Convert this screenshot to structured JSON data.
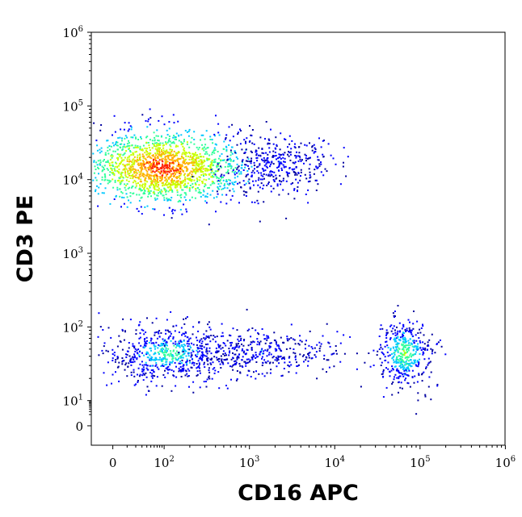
{
  "chart_data": {
    "type": "scatter",
    "subtype": "flow-cytometry-density-plot",
    "title": "",
    "xlabel": "CD16 APC",
    "ylabel": "CD3 PE",
    "x_scale": "biexponential",
    "y_scale": "biexponential",
    "xlim": [
      -50,
      1000000
    ],
    "ylim": [
      -20,
      1000000
    ],
    "x_ticks": [
      {
        "value": 0,
        "base": "0",
        "exp": ""
      },
      {
        "value": 100,
        "base": "10",
        "exp": "2"
      },
      {
        "value": 1000,
        "base": "10",
        "exp": "3"
      },
      {
        "value": 10000,
        "base": "10",
        "exp": "4"
      },
      {
        "value": 100000,
        "base": "10",
        "exp": "5"
      },
      {
        "value": 1000000,
        "base": "10",
        "exp": "6"
      }
    ],
    "y_ticks": [
      {
        "value": 0,
        "base": "0",
        "exp": ""
      },
      {
        "value": 10,
        "base": "10",
        "exp": "1"
      },
      {
        "value": 100,
        "base": "10",
        "exp": "2"
      },
      {
        "value": 1000,
        "base": "10",
        "exp": "3"
      },
      {
        "value": 10000,
        "base": "10",
        "exp": "4"
      },
      {
        "value": 100000,
        "base": "10",
        "exp": "5"
      },
      {
        "value": 1000000,
        "base": "10",
        "exp": "6"
      }
    ],
    "grid": false,
    "legend": "none",
    "colormap": [
      "#0000a0",
      "#0000ff",
      "#00c8ff",
      "#30ff9a",
      "#c8ff00",
      "#ffb000",
      "#ff2000"
    ],
    "populations": [
      {
        "cx": 90,
        "cy": 15000,
        "density": "very-high",
        "x_spread_decades": [
          20,
          3500
        ],
        "y_spread": [
          4000,
          40000
        ]
      },
      {
        "cx": 2000,
        "cy": 16000,
        "density": "low",
        "x_spread_decades": [
          500,
          12000
        ],
        "y_spread": [
          5000,
          35000
        ]
      },
      {
        "cx": 110,
        "cy": 45,
        "density": "medium",
        "x_spread_decades": [
          20,
          1500
        ],
        "y_spread": [
          15,
          100
        ]
      },
      {
        "cx": 1500,
        "cy": 45,
        "density": "low",
        "x_spread_decades": [
          300,
          20000
        ],
        "y_spread": [
          20,
          90
        ]
      },
      {
        "cx": 65000,
        "cy": 45,
        "density": "high",
        "x_spread_decades": [
          30000,
          130000
        ],
        "y_spread": [
          15,
          120
        ]
      }
    ]
  }
}
